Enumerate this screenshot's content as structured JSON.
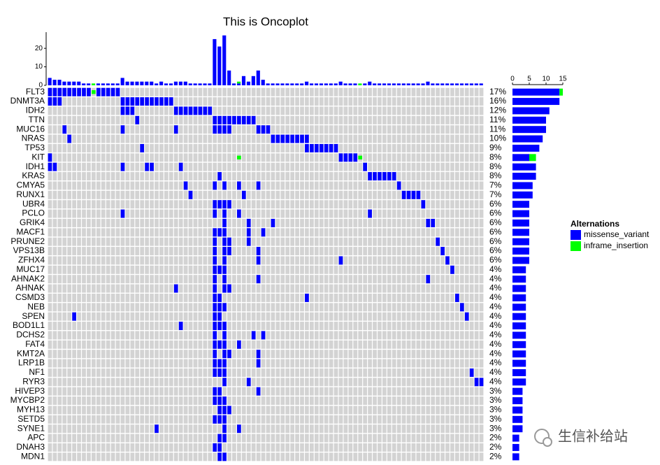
{
  "chart_data": {
    "type": "oncoplot",
    "title": "This is Oncoplot",
    "genes": [
      "FLT3",
      "DNMT3A",
      "IDH2",
      "TTN",
      "MUC16",
      "NRAS",
      "TP53",
      "KIT",
      "IDH1",
      "KRAS",
      "CMYA5",
      "RUNX1",
      "UBR4",
      "PCLO",
      "GRIK4",
      "MACF1",
      "PRUNE2",
      "VPS13B",
      "ZFHX4",
      "MUC17",
      "AHNAK2",
      "AHNAK",
      "CSMD3",
      "NEB",
      "SPEN",
      "BOD1L1",
      "DCHS2",
      "FAT4",
      "KMT2A",
      "LRP1B",
      "NF1",
      "RYR3",
      "HIVEP3",
      "MYCBP2",
      "MYH13",
      "SETD5",
      "SYNE1",
      "APC",
      "DNAH3",
      "MDN1"
    ],
    "values": [
      17,
      16,
      12,
      11,
      11,
      10,
      9,
      8,
      8,
      8,
      7,
      7,
      6,
      6,
      6,
      6,
      6,
      6,
      6,
      4,
      4,
      4,
      4,
      4,
      4,
      4,
      4,
      4,
      4,
      4,
      4,
      4,
      3,
      3,
      3,
      3,
      3,
      2,
      2,
      2
    ],
    "value_labels": [
      "17%",
      "16%",
      "12%",
      "11%",
      "11%",
      "10%",
      "9%",
      "8%",
      "8%",
      "8%",
      "7%",
      "7%",
      "6%",
      "6%",
      "6%",
      "6%",
      "6%",
      "6%",
      "6%",
      "4%",
      "4%",
      "4%",
      "4%",
      "4%",
      "4%",
      "4%",
      "4%",
      "4%",
      "4%",
      "4%",
      "4%",
      "4%",
      "3%",
      "3%",
      "3%",
      "3%",
      "3%",
      "2%",
      "2%",
      "2%"
    ],
    "legend_title": "Alternations",
    "series": [
      {
        "name": "missense_variant",
        "color": "#0000ff",
        "cells": [
          [
            0,
            1,
            2,
            3,
            4,
            5,
            6,
            7,
            8,
            10,
            11,
            12,
            13,
            14
          ],
          [
            0,
            1,
            2,
            15,
            16,
            17,
            18,
            19,
            20,
            21,
            22,
            23,
            24,
            25
          ],
          [
            15,
            16,
            17,
            26,
            27,
            28,
            29,
            30,
            31,
            32,
            33
          ],
          [
            18,
            34,
            35,
            36,
            37,
            38,
            39,
            40,
            41,
            42
          ],
          [
            3,
            15,
            26,
            34,
            35,
            36,
            37,
            43,
            44,
            45
          ],
          [
            4,
            46,
            47,
            48,
            49,
            50,
            51,
            52,
            53
          ],
          [
            19,
            53,
            54,
            55,
            56,
            57,
            58,
            59
          ],
          [
            0,
            60,
            61,
            62,
            63
          ],
          [
            0,
            1,
            15,
            20,
            21,
            27,
            65
          ],
          [
            35,
            66,
            67,
            68,
            69,
            70,
            71
          ],
          [
            28,
            34,
            36,
            39,
            43,
            72
          ],
          [
            29,
            40,
            73,
            74,
            75,
            76
          ],
          [
            34,
            35,
            36,
            37,
            77
          ],
          [
            15,
            34,
            36,
            39,
            66
          ],
          [
            36,
            41,
            46,
            78,
            79
          ],
          [
            34,
            35,
            36,
            41,
            44
          ],
          [
            34,
            36,
            37,
            41,
            80
          ],
          [
            34,
            36,
            37,
            43,
            81
          ],
          [
            34,
            36,
            43,
            60,
            82
          ],
          [
            34,
            35,
            36,
            83
          ],
          [
            34,
            36,
            43,
            78
          ],
          [
            26,
            34,
            36,
            37
          ],
          [
            34,
            35,
            53,
            84
          ],
          [
            34,
            35,
            36,
            85
          ],
          [
            5,
            34,
            35,
            86
          ],
          [
            27,
            34,
            35,
            36
          ],
          [
            34,
            36,
            42,
            44
          ],
          [
            34,
            35,
            36,
            39
          ],
          [
            34,
            36,
            37,
            43
          ],
          [
            34,
            35,
            36,
            43
          ],
          [
            34,
            35,
            36,
            87
          ],
          [
            36,
            41,
            88,
            89
          ],
          [
            34,
            35,
            43
          ],
          [
            34,
            35,
            36
          ],
          [
            35,
            36,
            37
          ],
          [
            34,
            35,
            36
          ],
          [
            22,
            36,
            39
          ],
          [
            35,
            36
          ],
          [
            34,
            35
          ],
          [
            35,
            36
          ]
        ],
        "sample_counts": [
          4,
          3,
          3,
          2,
          2,
          2,
          2,
          1,
          1,
          0,
          1,
          1,
          1,
          1,
          1,
          4,
          2,
          2,
          2,
          2,
          2,
          2,
          1,
          2,
          1,
          1,
          2,
          2,
          2,
          1,
          1,
          1,
          1,
          1,
          25,
          21,
          27,
          8,
          1,
          1,
          5,
          2,
          5,
          8,
          3,
          1,
          1,
          1,
          1,
          1,
          1,
          1,
          1,
          2,
          1,
          1,
          1,
          1,
          1,
          1,
          2,
          1,
          1,
          1,
          0,
          1,
          2,
          1,
          1,
          1,
          1,
          1,
          1,
          1,
          1,
          1,
          1,
          1,
          2,
          1,
          1,
          1,
          1,
          1,
          1,
          1,
          1,
          1,
          1,
          1
        ],
        "gene_counts": [
          14,
          14,
          11,
          10,
          10,
          9,
          8,
          5,
          7,
          7,
          6,
          6,
          5,
          5,
          5,
          5,
          5,
          5,
          5,
          4,
          4,
          4,
          4,
          4,
          4,
          4,
          4,
          4,
          4,
          4,
          4,
          4,
          3,
          3,
          3,
          3,
          3,
          2,
          2,
          2
        ]
      },
      {
        "name": "inframe_insertion",
        "color": "#00ff00",
        "cells": [
          [
            9
          ],
          [],
          [],
          [],
          [],
          [],
          [],
          [
            39,
            64
          ],
          [],
          [],
          [],
          [],
          [],
          [],
          [],
          [],
          [],
          [],
          [],
          [],
          [],
          [],
          [],
          [],
          [],
          [],
          [],
          [],
          [],
          [],
          [],
          [],
          [],
          [],
          [],
          [],
          [],
          [],
          [],
          []
        ],
        "sample_counts": [
          0,
          0,
          0,
          0,
          0,
          0,
          0,
          0,
          0,
          1,
          0,
          0,
          0,
          0,
          0,
          0,
          0,
          0,
          0,
          0,
          0,
          0,
          0,
          0,
          0,
          0,
          0,
          0,
          0,
          0,
          0,
          0,
          0,
          0,
          0,
          0,
          0,
          0,
          0,
          1,
          0,
          0,
          0,
          0,
          0,
          0,
          0,
          0,
          0,
          0,
          0,
          0,
          0,
          0,
          0,
          0,
          0,
          0,
          0,
          0,
          0,
          0,
          0,
          0,
          1,
          0,
          0,
          0,
          0,
          0,
          0,
          0,
          0,
          0,
          0,
          0,
          0,
          0,
          0,
          0,
          0,
          0,
          0,
          0,
          0,
          0,
          0,
          0,
          0,
          0
        ],
        "gene_counts": [
          1,
          0,
          0,
          0,
          0,
          0,
          0,
          2,
          0,
          0,
          0,
          0,
          0,
          0,
          0,
          0,
          0,
          0,
          0,
          0,
          0,
          0,
          0,
          0,
          0,
          0,
          0,
          0,
          0,
          0,
          0,
          0,
          0,
          0,
          0,
          0,
          0,
          0,
          0,
          0
        ]
      }
    ],
    "ylim": [
      0,
      28
    ],
    "yticks": [
      0,
      10,
      20
    ],
    "xlim": [
      0,
      15
    ],
    "xticks": [
      0,
      5,
      10,
      15
    ],
    "watermark": "生信补给站"
  }
}
